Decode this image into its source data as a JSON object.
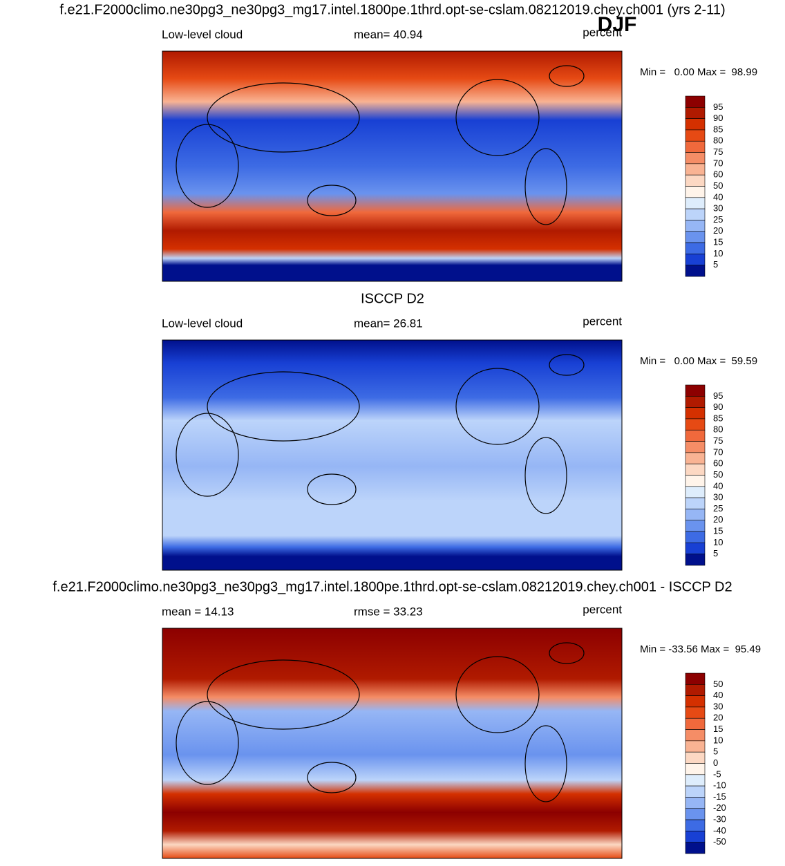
{
  "title": "f.e21.F2000climo.ne30pg3_ne30pg3_mg17.intel.1800pe.1thrd.opt-se-cslam.08212019.chey.ch001 (yrs 2-11)",
  "season": "DJF",
  "panels": [
    {
      "heading": null,
      "left": "Low-level cloud",
      "center": "mean=  40.94",
      "right": "percent",
      "minmax": "Min =   0.00 Max =  98.99",
      "colorbar": {
        "levels": [
          95,
          90,
          85,
          80,
          75,
          70,
          60,
          50,
          40,
          30,
          25,
          20,
          15,
          10,
          5
        ],
        "colors": [
          "#8c0000",
          "#b01a00",
          "#d43000",
          "#e64a14",
          "#f0693c",
          "#f58d66",
          "#f9b393",
          "#fcd8c3",
          "#fff4ea",
          "#deedfc",
          "#bcd4fa",
          "#96b6f5",
          "#6a93ee",
          "#3d6be4",
          "#1840d4",
          "#00108c"
        ]
      }
    },
    {
      "heading": "ISCCP D2",
      "left": "Low-level cloud",
      "center": "mean=  26.81",
      "right": "percent",
      "minmax": "Min =   0.00 Max =  59.59",
      "colorbar": {
        "levels": [
          95,
          90,
          85,
          80,
          75,
          70,
          60,
          50,
          40,
          30,
          25,
          20,
          15,
          10,
          5
        ],
        "colors": [
          "#8c0000",
          "#b01a00",
          "#d43000",
          "#e64a14",
          "#f0693c",
          "#f58d66",
          "#f9b393",
          "#fcd8c3",
          "#fff4ea",
          "#deedfc",
          "#bcd4fa",
          "#96b6f5",
          "#6a93ee",
          "#3d6be4",
          "#1840d4",
          "#00108c"
        ]
      }
    },
    {
      "heading": "f.e21.F2000climo.ne30pg3_ne30pg3_mg17.intel.1800pe.1thrd.opt-se-cslam.08212019.chey.ch001 - ISCCP D2",
      "left": "mean =  14.13",
      "center": "rmse =  33.23",
      "right": "percent",
      "minmax": "Min = -33.56 Max =  95.49",
      "colorbar": {
        "levels": [
          50,
          40,
          30,
          20,
          15,
          10,
          5,
          0,
          -5,
          -10,
          -15,
          -20,
          -30,
          -40,
          -50
        ],
        "colors": [
          "#8c0000",
          "#b01a00",
          "#d43000",
          "#e64a14",
          "#f0693c",
          "#f58d66",
          "#f9b393",
          "#fcd8c3",
          "#fff4ea",
          "#deedfc",
          "#bcd4fa",
          "#96b6f5",
          "#6a93ee",
          "#3d6be4",
          "#1840d4",
          "#00108c"
        ]
      }
    }
  ]
}
